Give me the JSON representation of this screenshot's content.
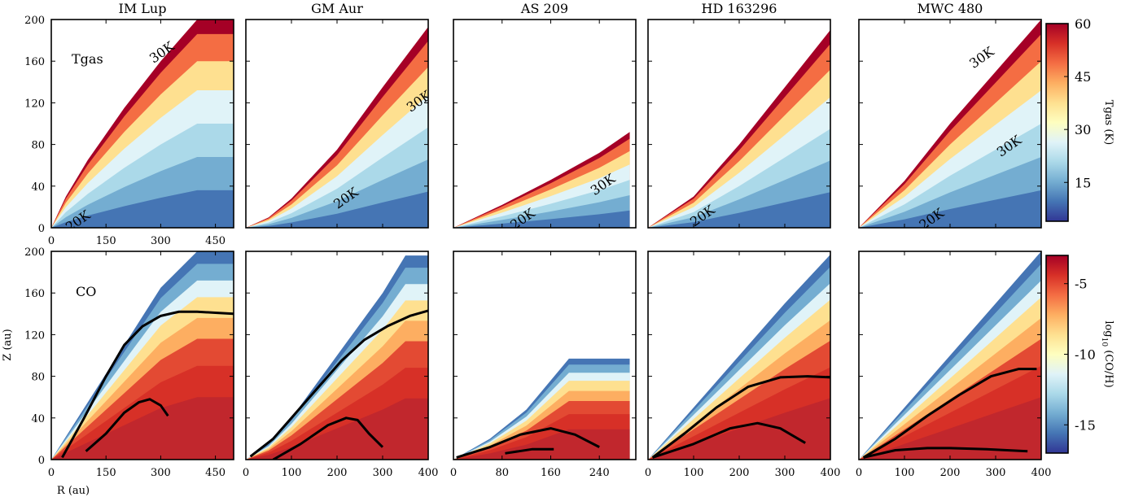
{
  "figure": {
    "ylabel": "Z (au)",
    "xlabel": "R (au)",
    "row_labels": [
      "Tgas",
      "CO"
    ]
  },
  "chart_data": [
    {
      "type": "heatmap",
      "title": "IM Lup",
      "row": "Tgas",
      "xlim": [
        0,
        500
      ],
      "ylim": [
        0,
        200
      ],
      "xticks": [
        "0",
        "150",
        "300",
        "450"
      ],
      "xtick_values": [
        0,
        150,
        300,
        450
      ],
      "yticks": [
        "0",
        "40",
        "80",
        "120",
        "160",
        "200"
      ],
      "ytick_values": [
        0,
        40,
        80,
        120,
        160,
        200
      ],
      "surface_x": [
        0,
        40,
        100,
        200,
        300,
        400,
        500
      ],
      "surface_y": [
        0,
        30,
        65,
        115,
        160,
        200,
        200
      ],
      "contour_labels": [
        {
          "text": "30K",
          "x": 310,
          "y": 165
        },
        {
          "text": "20K",
          "x": 80,
          "y": 3
        }
      ]
    },
    {
      "type": "heatmap",
      "title": "GM Aur",
      "row": "Tgas",
      "xlim": [
        0,
        400
      ],
      "ylim": [
        0,
        200
      ],
      "xticks": [],
      "xtick_values": [
        0,
        100,
        200,
        300,
        400
      ],
      "yticks": [],
      "ytick_values": [
        0,
        40,
        80,
        120,
        160,
        200
      ],
      "surface_x": [
        0,
        50,
        100,
        200,
        300,
        400
      ],
      "surface_y": [
        0,
        10,
        28,
        75,
        135,
        193
      ],
      "contour_labels": [
        {
          "text": "30K",
          "x": 385,
          "y": 118
        },
        {
          "text": "20K",
          "x": 225,
          "y": 25
        }
      ]
    },
    {
      "type": "heatmap",
      "title": "AS 209",
      "row": "Tgas",
      "xlim": [
        0,
        300
      ],
      "ylim": [
        0,
        200
      ],
      "xticks": [],
      "xtick_values": [
        0,
        80,
        160,
        240
      ],
      "yticks": [],
      "ytick_values": [
        0,
        40,
        80,
        120,
        160,
        200
      ],
      "surface_x": [
        0,
        80,
        160,
        240,
        290
      ],
      "surface_y": [
        0,
        22,
        46,
        72,
        92
      ],
      "contour_labels": [
        {
          "text": "30K",
          "x": 250,
          "y": 38
        },
        {
          "text": "20K",
          "x": 118,
          "y": 5
        }
      ]
    },
    {
      "type": "heatmap",
      "title": "HD 163296",
      "row": "Tgas",
      "xlim": [
        0,
        400
      ],
      "ylim": [
        0,
        200
      ],
      "xticks": [],
      "xtick_values": [
        0,
        100,
        200,
        300,
        400
      ],
      "yticks": [],
      "ytick_values": [
        0,
        40,
        80,
        120,
        160,
        200
      ],
      "surface_x": [
        0,
        100,
        200,
        300,
        400
      ],
      "surface_y": [
        0,
        30,
        80,
        135,
        190
      ],
      "contour_labels": [
        {
          "text": "20K",
          "x": 125,
          "y": 8
        }
      ]
    },
    {
      "type": "heatmap",
      "title": "MWC 480",
      "row": "Tgas",
      "xlim": [
        0,
        400
      ],
      "ylim": [
        0,
        200
      ],
      "xticks": [],
      "xtick_values": [
        0,
        100,
        200,
        300,
        400
      ],
      "yticks": [],
      "ytick_values": [
        0,
        40,
        80,
        120,
        160,
        200
      ],
      "surface_x": [
        0,
        100,
        200,
        300,
        400
      ],
      "surface_y": [
        0,
        45,
        100,
        150,
        200
      ],
      "contour_labels": [
        {
          "text": "30K",
          "x": 275,
          "y": 160
        },
        {
          "text": "30K",
          "x": 335,
          "y": 75
        },
        {
          "text": "20K",
          "x": 165,
          "y": 5
        }
      ]
    },
    {
      "type": "heatmap",
      "title": "",
      "row": "CO",
      "xlim": [
        0,
        500
      ],
      "ylim": [
        0,
        200
      ],
      "xticks": [
        "0",
        "150",
        "300",
        "450"
      ],
      "xtick_values": [
        0,
        150,
        300,
        450
      ],
      "yticks": [
        "0",
        "40",
        "80",
        "120",
        "160",
        "200"
      ],
      "ytick_values": [
        0,
        40,
        80,
        120,
        160,
        200
      ],
      "surface_x": [
        0,
        100,
        200,
        300,
        400,
        500
      ],
      "surface_y": [
        0,
        55,
        110,
        165,
        200,
        200
      ],
      "lines": [
        {
          "x": [
            30,
            90,
            150,
            200,
            250,
            300,
            350,
            400,
            450,
            500
          ],
          "y": [
            2,
            40,
            80,
            110,
            128,
            138,
            142,
            142,
            141,
            140
          ]
        },
        {
          "x": [
            95,
            150,
            200,
            240,
            270,
            300,
            320
          ],
          "y": [
            8,
            25,
            45,
            55,
            58,
            52,
            42
          ]
        }
      ]
    },
    {
      "type": "heatmap",
      "title": "",
      "row": "CO",
      "xlim": [
        0,
        400
      ],
      "ylim": [
        0,
        200
      ],
      "xticks": [
        "0",
        "100",
        "200",
        "300",
        "400"
      ],
      "xtick_values": [
        0,
        100,
        200,
        300,
        400
      ],
      "yticks": [],
      "ytick_values": [
        0,
        40,
        80,
        120,
        160,
        200
      ],
      "surface_x": [
        0,
        50,
        100,
        200,
        300,
        350,
        400
      ],
      "surface_y": [
        0,
        15,
        40,
        100,
        160,
        196,
        196
      ],
      "lines": [
        {
          "x": [
            10,
            60,
            110,
            160,
            210,
            260,
            310,
            360,
            400
          ],
          "y": [
            3,
            20,
            45,
            70,
            95,
            115,
            128,
            138,
            143
          ]
        },
        {
          "x": [
            60,
            120,
            180,
            220,
            245,
            270,
            300
          ],
          "y": [
            0,
            15,
            33,
            40,
            38,
            25,
            12
          ]
        }
      ]
    },
    {
      "type": "heatmap",
      "title": "",
      "row": "CO",
      "xlim": [
        0,
        300
      ],
      "ylim": [
        0,
        200
      ],
      "xticks": [
        "0",
        "80",
        "160",
        "240"
      ],
      "xtick_values": [
        0,
        80,
        160,
        240
      ],
      "yticks": [],
      "ytick_values": [
        0,
        40,
        80,
        120,
        160,
        200
      ],
      "surface_x": [
        0,
        60,
        120,
        190,
        290
      ],
      "surface_y": [
        0,
        20,
        48,
        97,
        97
      ],
      "lines": [
        {
          "x": [
            5,
            60,
            110,
            160,
            200,
            240
          ],
          "y": [
            2,
            12,
            24,
            30,
            24,
            12
          ]
        },
        {
          "x": [
            85,
            130,
            165
          ],
          "y": [
            6,
            10,
            10
          ]
        }
      ]
    },
    {
      "type": "heatmap",
      "title": "",
      "row": "CO",
      "xlim": [
        0,
        400
      ],
      "ylim": [
        0,
        200
      ],
      "xticks": [
        "0",
        "100",
        "200",
        "300",
        "400"
      ],
      "xtick_values": [
        0,
        100,
        200,
        300,
        400
      ],
      "yticks": [],
      "ytick_values": [
        0,
        40,
        80,
        120,
        160,
        200
      ],
      "surface_x": [
        0,
        100,
        200,
        300,
        400
      ],
      "surface_y": [
        0,
        50,
        100,
        150,
        197
      ],
      "lines": [
        {
          "x": [
            10,
            80,
            150,
            220,
            290,
            350,
            400
          ],
          "y": [
            2,
            25,
            50,
            70,
            79,
            80,
            79
          ]
        },
        {
          "x": [
            10,
            100,
            180,
            240,
            290,
            345
          ],
          "y": [
            2,
            15,
            30,
            35,
            30,
            16
          ]
        }
      ]
    },
    {
      "type": "heatmap",
      "title": "",
      "row": "CO",
      "xlim": [
        0,
        400
      ],
      "ylim": [
        0,
        200
      ],
      "xticks": [
        "0",
        "100",
        "200",
        "300",
        "400"
      ],
      "xtick_values": [
        0,
        100,
        200,
        300,
        400
      ],
      "yticks": [],
      "ytick_values": [
        0,
        40,
        80,
        120,
        160,
        200
      ],
      "surface_x": [
        0,
        100,
        200,
        300,
        400
      ],
      "surface_y": [
        0,
        50,
        100,
        150,
        200
      ],
      "lines": [
        {
          "x": [
            10,
            80,
            150,
            220,
            290,
            350,
            390
          ],
          "y": [
            2,
            20,
            42,
            62,
            80,
            87,
            87
          ]
        },
        {
          "x": [
            10,
            80,
            150,
            200,
            280,
            370
          ],
          "y": [
            2,
            9,
            11,
            11,
            10,
            8
          ]
        }
      ]
    }
  ],
  "colorbars": [
    {
      "label": "Tgas (K)",
      "ticks": [
        "60",
        "45",
        "30",
        "15"
      ],
      "tick_values": [
        60,
        45,
        30,
        15
      ],
      "vmin": 4,
      "vmax": 60
    },
    {
      "label": "log10 (CO/H)",
      "label_main": "log",
      "label_sub": "10",
      "label_rest": " (CO/H)",
      "ticks": [
        "-5",
        "-10",
        "-15"
      ],
      "tick_values": [
        -5,
        -10,
        -15
      ],
      "vmin": -17,
      "vmax": -3
    }
  ],
  "colors": {
    "low": "#313695",
    "mid": "#fefebf",
    "high": "#a50026"
  }
}
